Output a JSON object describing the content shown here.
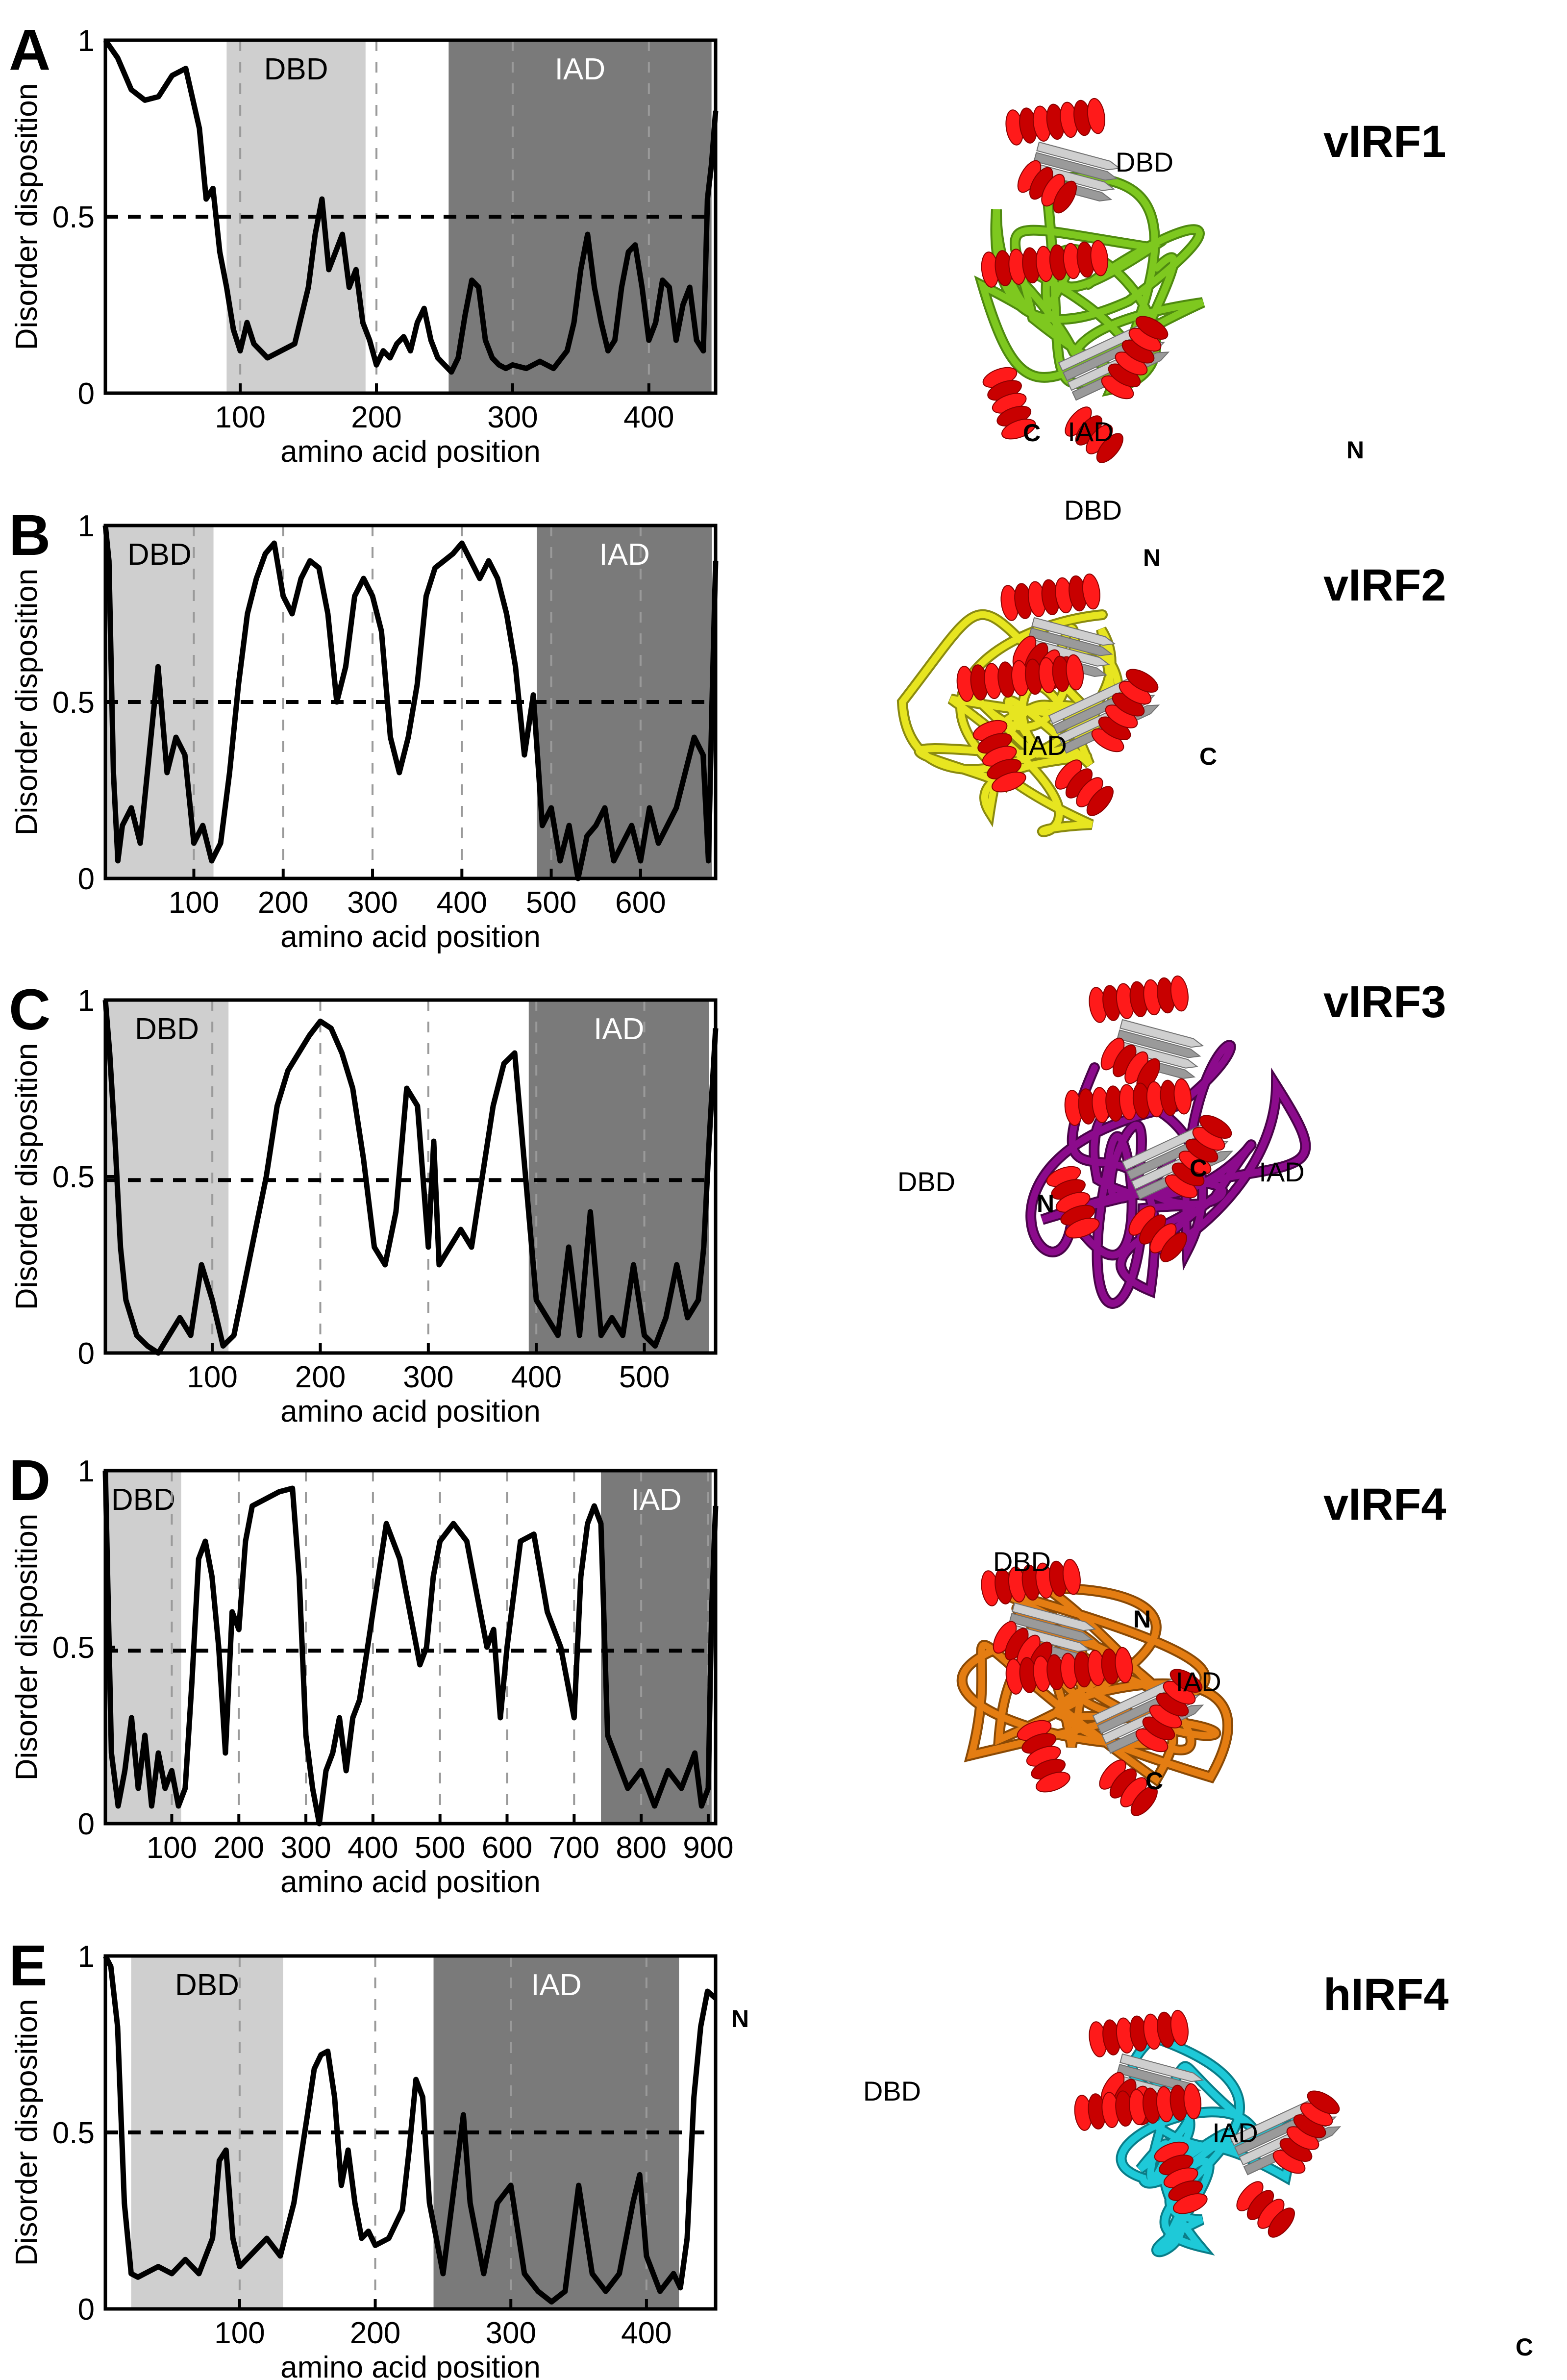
{
  "chart_data": [
    {
      "panel": "A",
      "type": "line",
      "protein": "vIRF1",
      "xlabel": "amino acid position",
      "ylabel": "Disorder disposition",
      "xlim": [
        1,
        449
      ],
      "ylim": [
        0,
        1
      ],
      "yticks": [
        "0",
        "0.5",
        "1"
      ],
      "xticks": [
        100,
        200,
        300,
        400
      ],
      "threshold": 0.5,
      "regions": [
        {
          "name": "DBD",
          "start": 90,
          "end": 192
        },
        {
          "name": "IAD",
          "start": 253,
          "end": 446
        }
      ],
      "structure_labels": [
        "DBD",
        "IAD",
        "C",
        "N"
      ],
      "series": [
        {
          "x": [
            1,
            10,
            20,
            30,
            40,
            50,
            60,
            70,
            75,
            80,
            85,
            90,
            95,
            100,
            105,
            110,
            120,
            130,
            140,
            150,
            155,
            160,
            165,
            170,
            175,
            180,
            185,
            190,
            195,
            200,
            205,
            210,
            215,
            220,
            225,
            230,
            235,
            240,
            245,
            250,
            255,
            260,
            265,
            270,
            275,
            280,
            285,
            290,
            295,
            300,
            310,
            320,
            330,
            340,
            345,
            350,
            355,
            360,
            365,
            370,
            375,
            380,
            385,
            390,
            395,
            400,
            405,
            410,
            415,
            420,
            425,
            430,
            435,
            440,
            443,
            446,
            449
          ],
          "y": [
            1.0,
            0.95,
            0.86,
            0.83,
            0.84,
            0.9,
            0.92,
            0.75,
            0.55,
            0.58,
            0.4,
            0.3,
            0.18,
            0.12,
            0.2,
            0.14,
            0.1,
            0.12,
            0.14,
            0.3,
            0.45,
            0.55,
            0.35,
            0.4,
            0.45,
            0.3,
            0.35,
            0.2,
            0.15,
            0.08,
            0.12,
            0.1,
            0.14,
            0.16,
            0.12,
            0.2,
            0.24,
            0.15,
            0.1,
            0.08,
            0.06,
            0.1,
            0.22,
            0.32,
            0.3,
            0.15,
            0.1,
            0.08,
            0.07,
            0.08,
            0.07,
            0.09,
            0.07,
            0.12,
            0.2,
            0.35,
            0.45,
            0.3,
            0.2,
            0.12,
            0.15,
            0.3,
            0.4,
            0.42,
            0.3,
            0.15,
            0.2,
            0.32,
            0.3,
            0.15,
            0.25,
            0.3,
            0.15,
            0.12,
            0.55,
            0.65,
            0.8
          ]
        }
      ]
    },
    {
      "panel": "B",
      "type": "line",
      "protein": "vIRF2",
      "xlabel": "amino acid position",
      "ylabel": "Disorder disposition",
      "xlim": [
        1,
        684
      ],
      "ylim": [
        0,
        1
      ],
      "yticks": [
        "0",
        "0.5",
        "1"
      ],
      "xticks": [
        100,
        200,
        300,
        400,
        500,
        600
      ],
      "threshold": 0.5,
      "regions": [
        {
          "name": "DBD",
          "start": 1,
          "end": 122
        },
        {
          "name": "IAD",
          "start": 484,
          "end": 680
        }
      ],
      "structure_labels": [
        "DBD",
        "N",
        "IAD",
        "C"
      ],
      "series": [
        {
          "x": [
            1,
            5,
            10,
            15,
            20,
            30,
            40,
            50,
            60,
            70,
            80,
            90,
            100,
            110,
            120,
            130,
            140,
            150,
            160,
            170,
            180,
            190,
            200,
            210,
            220,
            230,
            240,
            250,
            260,
            270,
            280,
            290,
            300,
            310,
            320,
            330,
            340,
            350,
            360,
            370,
            380,
            390,
            400,
            410,
            420,
            430,
            440,
            450,
            460,
            470,
            480,
            490,
            500,
            510,
            520,
            530,
            540,
            550,
            560,
            570,
            580,
            590,
            600,
            610,
            620,
            630,
            640,
            650,
            660,
            670,
            676,
            680,
            684
          ],
          "y": [
            1.0,
            0.9,
            0.3,
            0.05,
            0.15,
            0.2,
            0.1,
            0.35,
            0.6,
            0.3,
            0.4,
            0.35,
            0.1,
            0.15,
            0.05,
            0.1,
            0.3,
            0.55,
            0.75,
            0.85,
            0.92,
            0.95,
            0.8,
            0.75,
            0.85,
            0.9,
            0.88,
            0.75,
            0.5,
            0.6,
            0.8,
            0.85,
            0.8,
            0.7,
            0.4,
            0.3,
            0.4,
            0.55,
            0.8,
            0.88,
            0.9,
            0.92,
            0.95,
            0.9,
            0.85,
            0.9,
            0.85,
            0.75,
            0.6,
            0.35,
            0.52,
            0.15,
            0.2,
            0.05,
            0.15,
            0.0,
            0.12,
            0.15,
            0.2,
            0.05,
            0.1,
            0.15,
            0.05,
            0.2,
            0.1,
            0.15,
            0.2,
            0.3,
            0.4,
            0.35,
            0.05,
            0.5,
            0.9
          ]
        }
      ]
    },
    {
      "panel": "C",
      "type": "line",
      "protein": "vIRF3",
      "xlabel": "amino acid position",
      "ylabel": "Disorder disposition",
      "xlim": [
        1,
        566
      ],
      "ylim": [
        0,
        1
      ],
      "yticks": [
        "0",
        "0.5",
        "1"
      ],
      "xticks": [
        100,
        200,
        300,
        400,
        500
      ],
      "threshold": 0.49,
      "regions": [
        {
          "name": "DBD",
          "start": 1,
          "end": 115
        },
        {
          "name": "IAD",
          "start": 393,
          "end": 560
        }
      ],
      "structure_labels": [
        "DBD",
        "N",
        "C",
        "IAD"
      ],
      "series": [
        {
          "x": [
            1,
            5,
            10,
            15,
            20,
            30,
            40,
            50,
            60,
            70,
            80,
            90,
            100,
            110,
            120,
            130,
            140,
            150,
            160,
            170,
            180,
            190,
            200,
            210,
            220,
            230,
            240,
            250,
            260,
            270,
            280,
            290,
            300,
            305,
            310,
            320,
            330,
            340,
            350,
            360,
            370,
            380,
            390,
            400,
            410,
            420,
            430,
            440,
            450,
            460,
            470,
            480,
            490,
            500,
            510,
            520,
            530,
            540,
            550,
            555,
            560,
            566
          ],
          "y": [
            1.0,
            0.85,
            0.6,
            0.3,
            0.15,
            0.05,
            0.02,
            0.0,
            0.05,
            0.1,
            0.05,
            0.25,
            0.15,
            0.02,
            0.05,
            0.2,
            0.35,
            0.5,
            0.7,
            0.8,
            0.85,
            0.9,
            0.94,
            0.92,
            0.85,
            0.75,
            0.55,
            0.3,
            0.25,
            0.4,
            0.75,
            0.7,
            0.3,
            0.6,
            0.25,
            0.3,
            0.35,
            0.3,
            0.5,
            0.7,
            0.82,
            0.85,
            0.5,
            0.15,
            0.1,
            0.05,
            0.3,
            0.05,
            0.4,
            0.05,
            0.1,
            0.05,
            0.25,
            0.05,
            0.02,
            0.1,
            0.25,
            0.1,
            0.15,
            0.3,
            0.6,
            0.92
          ]
        }
      ]
    },
    {
      "panel": "D",
      "type": "line",
      "protein": "vIRF4",
      "xlabel": "amino acid position",
      "ylabel": "Disorder disposition",
      "xlim": [
        1,
        911
      ],
      "ylim": [
        0,
        1
      ],
      "yticks": [
        "0",
        "0.5",
        "1"
      ],
      "xticks": [
        100,
        200,
        300,
        400,
        500,
        600,
        700,
        800,
        900
      ],
      "threshold": 0.49,
      "regions": [
        {
          "name": "DBD",
          "start": 1,
          "end": 114
        },
        {
          "name": "IAD",
          "start": 740,
          "end": 905
        }
      ],
      "structure_labels": [
        "DBD",
        "N",
        "IAD",
        "C"
      ],
      "series": [
        {
          "x": [
            1,
            10,
            20,
            30,
            40,
            50,
            60,
            70,
            80,
            90,
            100,
            110,
            120,
            130,
            140,
            150,
            160,
            170,
            180,
            190,
            200,
            210,
            220,
            240,
            260,
            280,
            290,
            300,
            310,
            320,
            330,
            340,
            350,
            360,
            370,
            380,
            400,
            420,
            440,
            460,
            470,
            480,
            490,
            500,
            520,
            540,
            560,
            570,
            580,
            590,
            600,
            620,
            640,
            660,
            680,
            700,
            710,
            720,
            730,
            740,
            750,
            760,
            780,
            800,
            820,
            840,
            860,
            880,
            890,
            900,
            905,
            911
          ],
          "y": [
            1.0,
            0.2,
            0.05,
            0.15,
            0.3,
            0.1,
            0.25,
            0.05,
            0.2,
            0.1,
            0.15,
            0.05,
            0.1,
            0.4,
            0.75,
            0.8,
            0.7,
            0.5,
            0.2,
            0.6,
            0.55,
            0.8,
            0.9,
            0.92,
            0.94,
            0.95,
            0.7,
            0.25,
            0.1,
            0.0,
            0.15,
            0.2,
            0.3,
            0.15,
            0.3,
            0.35,
            0.6,
            0.85,
            0.75,
            0.55,
            0.45,
            0.5,
            0.7,
            0.8,
            0.85,
            0.8,
            0.6,
            0.5,
            0.55,
            0.3,
            0.5,
            0.8,
            0.82,
            0.6,
            0.5,
            0.3,
            0.7,
            0.85,
            0.9,
            0.85,
            0.25,
            0.2,
            0.1,
            0.15,
            0.05,
            0.15,
            0.1,
            0.2,
            0.05,
            0.1,
            0.6,
            0.9
          ]
        }
      ]
    },
    {
      "panel": "E",
      "type": "line",
      "protein": "hIRF4",
      "xlabel": "amino acid position",
      "ylabel": "Disorder disposition",
      "xlim": [
        1,
        451
      ],
      "ylim": [
        0,
        1
      ],
      "yticks": [
        "0",
        "0.5",
        "1"
      ],
      "xticks": [
        100,
        200,
        300,
        400
      ],
      "threshold": 0.5,
      "regions": [
        {
          "name": "DBD",
          "start": 20,
          "end": 132
        },
        {
          "name": "IAD",
          "start": 243,
          "end": 424
        }
      ],
      "structure_labels": [
        "N",
        "DBD",
        "IAD",
        "C"
      ],
      "series": [
        {
          "x": [
            1,
            5,
            10,
            15,
            20,
            25,
            30,
            40,
            50,
            60,
            70,
            80,
            85,
            90,
            95,
            100,
            110,
            120,
            130,
            140,
            150,
            155,
            160,
            165,
            170,
            175,
            180,
            185,
            190,
            195,
            200,
            210,
            220,
            225,
            230,
            235,
            240,
            245,
            250,
            260,
            265,
            270,
            280,
            290,
            300,
            310,
            320,
            330,
            340,
            345,
            350,
            360,
            370,
            380,
            390,
            395,
            400,
            410,
            420,
            425,
            430,
            435,
            440,
            445,
            451
          ],
          "y": [
            1.0,
            0.97,
            0.8,
            0.3,
            0.1,
            0.09,
            0.1,
            0.12,
            0.1,
            0.14,
            0.1,
            0.2,
            0.42,
            0.45,
            0.2,
            0.12,
            0.16,
            0.2,
            0.15,
            0.3,
            0.55,
            0.68,
            0.72,
            0.73,
            0.6,
            0.35,
            0.45,
            0.3,
            0.2,
            0.22,
            0.18,
            0.2,
            0.28,
            0.45,
            0.65,
            0.6,
            0.3,
            0.2,
            0.1,
            0.4,
            0.55,
            0.3,
            0.1,
            0.3,
            0.35,
            0.1,
            0.05,
            0.02,
            0.05,
            0.2,
            0.35,
            0.1,
            0.05,
            0.1,
            0.3,
            0.38,
            0.15,
            0.05,
            0.1,
            0.06,
            0.2,
            0.6,
            0.8,
            0.9,
            0.88
          ]
        }
      ]
    }
  ]
}
